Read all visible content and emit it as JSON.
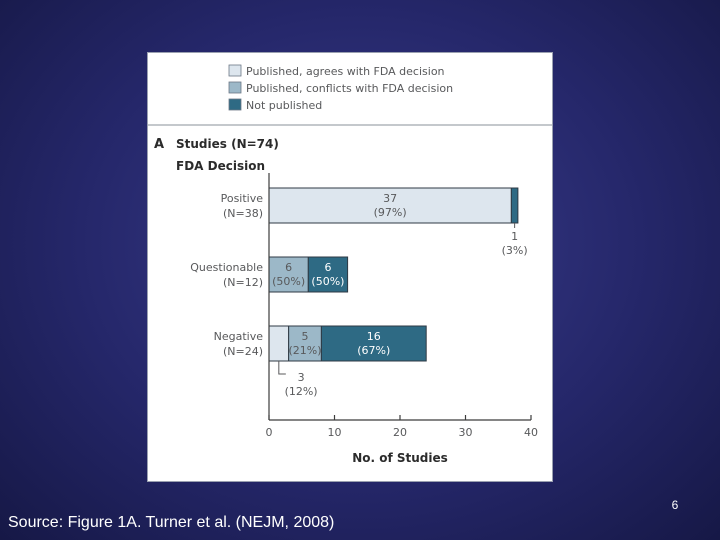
{
  "slide": {
    "number": "6",
    "caption": "Source: Figure 1A. Turner et al. (NEJM, 2008)"
  },
  "chart_data": {
    "type": "bar",
    "orientation": "horizontal",
    "stacked": true,
    "panel_label": "A",
    "title": "Studies (N=74)",
    "group_heading": "FDA Decision",
    "xlabel": "No. of Studies",
    "xlim": [
      0,
      40
    ],
    "xticks": [
      0,
      10,
      20,
      30,
      40
    ],
    "grid": false,
    "legend_position": "top",
    "legend": [
      {
        "label": "Published, agrees with FDA decision",
        "color": "#dde6ee"
      },
      {
        "label": "Published, conflicts with FDA decision",
        "color": "#9cb8c8"
      },
      {
        "label": "Not published",
        "color": "#2e6a84"
      }
    ],
    "categories": [
      {
        "name": "Positive",
        "n_label": "(N=38)"
      },
      {
        "name": "Questionable",
        "n_label": "(N=12)"
      },
      {
        "name": "Negative",
        "n_label": "(N=24)"
      }
    ],
    "series": [
      {
        "name": "Published, agrees with FDA decision",
        "values": [
          37,
          0,
          3
        ],
        "labels": [
          {
            "count": "37",
            "pct": "(97%)"
          },
          null,
          {
            "count": "3",
            "pct": "(12%)"
          }
        ]
      },
      {
        "name": "Published, conflicts with FDA decision",
        "values": [
          0,
          6,
          5
        ],
        "labels": [
          null,
          {
            "count": "6",
            "pct": "(50%)"
          },
          {
            "count": "5",
            "pct": "(21%)"
          }
        ]
      },
      {
        "name": "Not published",
        "values": [
          1,
          6,
          16
        ],
        "labels": [
          {
            "count": "1",
            "pct": "(3%)"
          },
          {
            "count": "6",
            "pct": "(50%)"
          },
          {
            "count": "16",
            "pct": "(67%)"
          }
        ]
      }
    ]
  }
}
